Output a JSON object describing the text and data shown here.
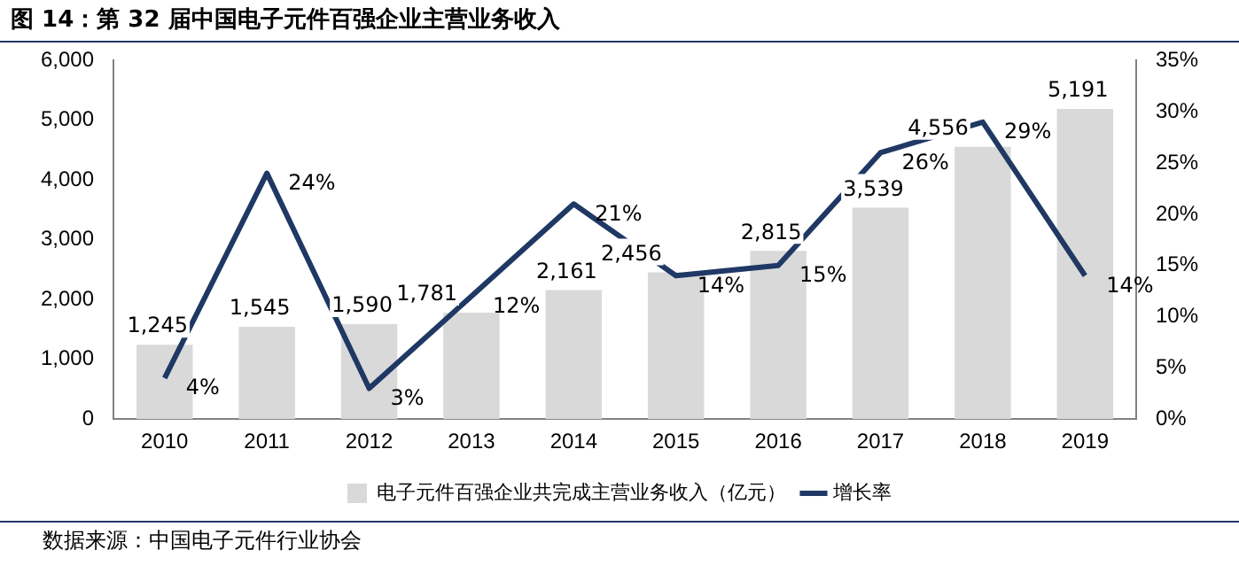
{
  "chart_data": {
    "type": "bar",
    "title": "图 14：第 32 届中国电子元件百强企业主营业务收入",
    "categories": [
      "2010",
      "2011",
      "2012",
      "2013",
      "2014",
      "2015",
      "2016",
      "2017",
      "2018",
      "2019"
    ],
    "series": [
      {
        "name": "电子元件百强企业共完成主营业务收入（亿元）",
        "color": "#d9d9d9",
        "values": [
          1245,
          1545,
          1590,
          1781,
          2161,
          2456,
          2815,
          3539,
          4556,
          5191
        ],
        "value_labels": [
          "1,245",
          "1,545",
          "1,590",
          "1,781",
          "2,161",
          "2,456",
          "2,815",
          "3,539",
          "4,556",
          "5,191"
        ]
      },
      {
        "name": "增长率",
        "type": "line",
        "axis": "y2",
        "color": "#1f3864",
        "values": [
          4,
          24,
          3,
          12,
          21,
          14,
          15,
          26,
          29,
          14
        ],
        "value_labels": [
          "4%",
          "24%",
          "3%",
          "12%",
          "21%",
          "14%",
          "15%",
          "26%",
          "29%",
          "14%"
        ]
      }
    ],
    "ylim": [
      0,
      6000
    ],
    "yticks": [
      {
        "value": 0,
        "label": "0"
      },
      {
        "value": 1000,
        "label": "1,000"
      },
      {
        "value": 2000,
        "label": "2,000"
      },
      {
        "value": 3000,
        "label": "3,000"
      },
      {
        "value": 4000,
        "label": "4,000"
      },
      {
        "value": 5000,
        "label": "5,000"
      },
      {
        "value": 6000,
        "label": "6,000"
      }
    ],
    "y2lim": [
      0,
      35
    ],
    "y2ticks": [
      {
        "value": 0,
        "label": "0%"
      },
      {
        "value": 5,
        "label": "5%"
      },
      {
        "value": 10,
        "label": "10%"
      },
      {
        "value": 15,
        "label": "15%"
      },
      {
        "value": 20,
        "label": "20%"
      },
      {
        "value": 25,
        "label": "25%"
      },
      {
        "value": 30,
        "label": "30%"
      },
      {
        "value": 35,
        "label": "35%"
      }
    ],
    "grid": false,
    "legend": "bottom",
    "marker": "none",
    "line_style": "solid",
    "annotations": [
      "数据来源：中国电子元件行业协会"
    ]
  }
}
